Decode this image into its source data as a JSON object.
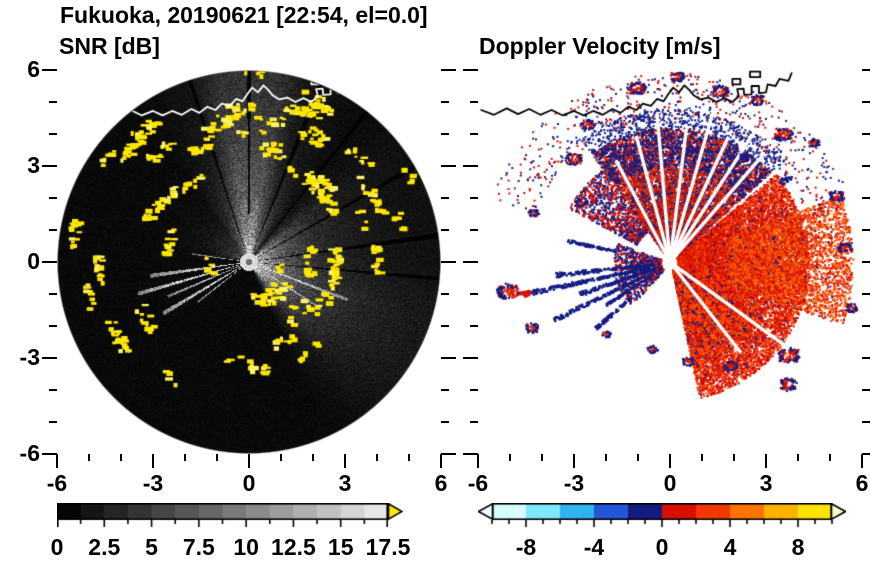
{
  "header": {
    "title": "Fukuoka, 20190621 [22:54, el=0.0]"
  },
  "panels": {
    "snr": {
      "title": "SNR [dB]"
    },
    "doppler": {
      "title": "Doppler Velocity [m/s]"
    }
  },
  "axes": {
    "range": [
      -6,
      6
    ],
    "minor_step": 1,
    "major_step": 3,
    "x_ticks": [
      {
        "v": -6,
        "label": "-6"
      },
      {
        "v": -3,
        "label": "-3"
      },
      {
        "v": 0,
        "label": "0"
      },
      {
        "v": 3,
        "label": "3"
      },
      {
        "v": 6,
        "label": "6"
      }
    ],
    "y_ticks": [
      {
        "v": 6,
        "label": "6"
      },
      {
        "v": 3,
        "label": "3"
      },
      {
        "v": 0,
        "label": "0"
      },
      {
        "v": -3,
        "label": "-3"
      },
      {
        "v": -6,
        "label": "-6"
      }
    ]
  },
  "colorbars": {
    "snr": {
      "min": 0,
      "max": 17.5,
      "step": 1.25,
      "over_color": "#ffe800",
      "labels": [
        {
          "v": 0,
          "label": "0"
        },
        {
          "v": 2.5,
          "label": "2.5"
        },
        {
          "v": 5,
          "label": "5"
        },
        {
          "v": 7.5,
          "label": "7.5"
        },
        {
          "v": 10,
          "label": "10"
        },
        {
          "v": 12.5,
          "label": "12.5"
        },
        {
          "v": 15,
          "label": "15"
        },
        {
          "v": 17.5,
          "label": "17.5"
        }
      ]
    },
    "doppler": {
      "min": -10,
      "max": 10,
      "segment_colors": [
        "#d8ffff",
        "#7fe8ff",
        "#2fb4f0",
        "#2356d8",
        "#141c80",
        "#d81000",
        "#f03800",
        "#ff7300",
        "#ffb300",
        "#ffe400"
      ],
      "under_color": "#eeffff",
      "over_color": "#ffffcf",
      "labels": [
        {
          "v": -8,
          "label": "-8"
        },
        {
          "v": -4,
          "label": "-4"
        },
        {
          "v": 0,
          "label": "0"
        },
        {
          "v": 4,
          "label": "4"
        },
        {
          "v": 8,
          "label": "8"
        }
      ]
    }
  },
  "chart_data": {
    "type": "heatmap",
    "subtype": "dual-panel doppler lidar/radar PPI scan",
    "station": "Fukuoka",
    "date": "20190621",
    "time": "22:54",
    "elevation_deg": 0.0,
    "x_range_km": [
      -6,
      6
    ],
    "y_range_km": [
      -6,
      6
    ],
    "panels": [
      {
        "name": "SNR",
        "units": "dB",
        "colormap": "grayscale",
        "cmin": 0,
        "cmax": 17.5,
        "over_color": "#ffe800"
      },
      {
        "name": "Doppler Velocity",
        "units": "m/s",
        "colormap": "cyan-blue-navy-red-orange-yellow",
        "cmin": -10,
        "cmax": 10
      }
    ],
    "snr": {
      "disk_radius_km": 6,
      "speckle_color": "#ffe800",
      "sectors": [
        {
          "a0": -58,
          "a1": 46,
          "amp": 190,
          "r1": 0.14,
          "amp2": 46,
          "r2": 0.5,
          "soft": 8
        },
        {
          "a0": -45,
          "a1": -8,
          "amp": 0,
          "r1": 0.3,
          "amp2": 24,
          "r2": 0.9,
          "soft": 10
        },
        {
          "a0": 58,
          "a1": 118,
          "amp": 120,
          "r1": 0.15,
          "amp2": 40,
          "r2": 0.6,
          "soft": 8
        },
        {
          "a0": 76,
          "a1": 104,
          "amp": 0,
          "r1": 0.2,
          "amp2": 70,
          "r2": 1.2,
          "soft": 5
        },
        {
          "a0": 116,
          "a1": 168,
          "amp": 90,
          "r1": 0.12,
          "amp2": 0,
          "r2": 1,
          "soft": 8
        }
      ],
      "bright_rays": [
        {
          "a": 188,
          "w": 1.2,
          "len": 0.52,
          "amp": 260
        },
        {
          "a": 196,
          "w": 1.0,
          "len": 0.6,
          "amp": 280
        },
        {
          "a": 203,
          "w": 0.9,
          "len": 0.46,
          "amp": 250
        },
        {
          "a": 211,
          "w": 1.2,
          "len": 0.52,
          "amp": 270
        },
        {
          "a": 218,
          "w": 0.8,
          "len": 0.34,
          "amp": 230
        },
        {
          "a": 172,
          "w": 0.8,
          "len": 0.3,
          "amp": 200
        },
        {
          "a": -21,
          "w": 0.9,
          "len": 0.55,
          "amp": 190
        },
        {
          "a": -33,
          "w": 0.7,
          "len": 0.42,
          "amp": 170
        }
      ],
      "dark_rays": [
        {
          "a": 8,
          "w": 0.8,
          "len": 1
        },
        {
          "a": -5,
          "w": 0.6,
          "len": 1
        },
        {
          "a": 30,
          "w": 0.7,
          "len": 1
        },
        {
          "a": 52,
          "w": 0.6,
          "len": 1
        },
        {
          "a": 68,
          "w": 0.8,
          "len": 1
        },
        {
          "a": 90,
          "w": 0.6,
          "len": 1
        },
        {
          "a": 108,
          "w": 0.6,
          "len": 1
        }
      ],
      "speckle_zones": [
        {
          "a0": 96,
          "a1": 152,
          "r0": 0.5,
          "r1": 0.95,
          "n": 13
        },
        {
          "a0": 62,
          "a1": 96,
          "r0": 0.55,
          "r1": 1.0,
          "n": 11
        },
        {
          "a0": 28,
          "a1": 62,
          "r0": 0.45,
          "r1": 0.95,
          "n": 9
        },
        {
          "a0": -8,
          "a1": 28,
          "r0": 0.3,
          "r1": 0.8,
          "n": 7
        },
        {
          "a0": -72,
          "a1": -18,
          "r0": 0.12,
          "r1": 0.55,
          "n": 10
        },
        {
          "a0": 152,
          "a1": 214,
          "r0": 0.55,
          "r1": 0.95,
          "n": 6
        },
        {
          "a0": -130,
          "a1": -80,
          "r0": 0.3,
          "r1": 0.8,
          "n": 3
        },
        {
          "a0": 160,
          "a1": 200,
          "r0": 0.2,
          "r1": 0.45,
          "n": 2
        }
      ]
    },
    "doppler": {
      "navy": "#141c80",
      "regions": [
        {
          "a0": -78,
          "a1": 40,
          "r0": 0.04,
          "rmax": 0.72,
          "n": 15000,
          "colors": [
            "#d81000",
            "#ee2800",
            "#c00800",
            "#ff4d00"
          ],
          "navy": 0.04,
          "size": 2
        },
        {
          "a0": -20,
          "a1": 22,
          "r0": 0.3,
          "rmax": 0.95,
          "n": 3500,
          "colors": [
            "#ee3a00",
            "#ff6a00",
            "#d81000"
          ],
          "navy": 0.03,
          "size": 2
        },
        {
          "a0": -78,
          "a1": -30,
          "r0": 0.1,
          "rmax": 0.55,
          "n": 2200,
          "colors": [
            "#d81000",
            "#ff5500"
          ],
          "navy": 0.15,
          "size": 2
        },
        {
          "a0": 42,
          "a1": 126,
          "r0": 0.06,
          "rmax": 0.7,
          "n": 9000,
          "colors": [
            "#d81000",
            "#e03000"
          ],
          "navy": 0.28,
          "size": 2
        },
        {
          "a0": 42,
          "a1": 126,
          "r0": 0.5,
          "rmax": 0.8,
          "n": 1600,
          "colors": [
            "#141c80"
          ],
          "navy": 1,
          "size": 2
        },
        {
          "a0": 126,
          "a1": 152,
          "r0": 0.2,
          "rmax": 0.6,
          "n": 900,
          "colors": [
            "#d81000"
          ],
          "navy": 0.5,
          "size": 2
        },
        {
          "a0": 20,
          "a1": 160,
          "r0": 0.75,
          "rmax": 0.99,
          "n": 500,
          "colors": [
            "#d81000"
          ],
          "navy": 0.5,
          "size": 2
        },
        {
          "a0": 160,
          "a1": 228,
          "r0": 0.05,
          "rmax": 0.3,
          "n": 800,
          "colors": [
            "#d81000"
          ],
          "navy": 0.65,
          "size": 2
        }
      ],
      "streaks": [
        {
          "a": 186,
          "w": 1.2,
          "r0": 0.1,
          "r1": 0.6
        },
        {
          "a": 192,
          "w": 1.0,
          "r0": 0.12,
          "r1": 0.82,
          "redTip": true
        },
        {
          "a": 199,
          "w": 1.4,
          "r0": 0.1,
          "r1": 0.5
        },
        {
          "a": 206,
          "w": 1.0,
          "r0": 0.15,
          "r1": 0.68
        },
        {
          "a": 213,
          "w": 0.9,
          "r0": 0.12,
          "r1": 0.4
        },
        {
          "a": 221,
          "w": 1.1,
          "r0": 0.28,
          "r1": 0.52
        },
        {
          "a": 168,
          "w": 0.9,
          "r0": 0.3,
          "r1": 0.55
        }
      ],
      "gap_rays": [
        {
          "a": 49,
          "r1": 0.75
        },
        {
          "a": 57,
          "r1": 0.8
        },
        {
          "a": 65,
          "r1": 0.72
        },
        {
          "a": 74,
          "r1": 0.82
        },
        {
          "a": 83,
          "r1": 0.7
        },
        {
          "a": 95,
          "r1": 0.78
        },
        {
          "a": 105,
          "r1": 0.68
        },
        {
          "a": 118,
          "r1": 0.6
        },
        {
          "a": -36,
          "r1": 0.75
        },
        {
          "a": -52,
          "r1": 0.6
        }
      ],
      "patches": [
        {
          "a": 133,
          "r": 0.74,
          "s": 10
        },
        {
          "a": 121,
          "r": 0.84,
          "s": 8
        },
        {
          "a": 101,
          "r": 0.93,
          "s": 11
        },
        {
          "a": 88,
          "r": 0.97,
          "s": 8
        },
        {
          "a": 74,
          "r": 0.93,
          "s": 10
        },
        {
          "a": 62,
          "r": 0.96,
          "s": 8
        },
        {
          "a": 49,
          "r": 0.89,
          "s": 11
        },
        {
          "a": 40,
          "r": 0.97,
          "s": 7
        },
        {
          "a": 22,
          "r": 0.93,
          "s": 9
        },
        {
          "a": 5,
          "r": 0.91,
          "s": 8
        },
        {
          "a": -14,
          "r": 0.97,
          "s": 7
        },
        {
          "a": -38,
          "r": 0.78,
          "s": 13
        },
        {
          "a": -46,
          "r": 0.88,
          "s": 10
        },
        {
          "a": -60,
          "r": 0.62,
          "s": 8
        },
        {
          "a": -80,
          "r": 0.52,
          "s": 7
        },
        {
          "a": -102,
          "r": 0.46,
          "s": 6
        },
        {
          "a": 190,
          "r": 0.86,
          "s": 13
        },
        {
          "a": 205,
          "r": 0.8,
          "s": 8
        },
        {
          "a": 160,
          "r": 0.76,
          "s": 6
        },
        {
          "a": 146,
          "r": 0.56,
          "s": 7
        },
        {
          "a": 228,
          "r": 0.5,
          "s": 5
        },
        {
          "a": 36,
          "r": 0.74,
          "s": 9,
          "solid": 1
        },
        {
          "a": 55,
          "r": 0.68,
          "s": 8,
          "solid": 1
        }
      ]
    },
    "coastline_km": [
      [
        -5.9,
        4.75
      ],
      [
        -5.5,
        4.6
      ],
      [
        -5.1,
        4.8
      ],
      [
        -4.75,
        4.62
      ],
      [
        -4.4,
        4.78
      ],
      [
        -4.05,
        4.6
      ],
      [
        -3.7,
        4.75
      ],
      [
        -3.35,
        4.58
      ],
      [
        -3.0,
        4.72
      ],
      [
        -2.7,
        4.58
      ],
      [
        -2.4,
        4.72
      ],
      [
        -2.1,
        4.6
      ],
      [
        -1.8,
        4.78
      ],
      [
        -1.55,
        4.66
      ],
      [
        -1.3,
        4.85
      ],
      [
        -1.05,
        4.75
      ],
      [
        -0.85,
        4.95
      ],
      [
        -0.6,
        4.88
      ],
      [
        -0.4,
        5.1
      ],
      [
        -0.2,
        5.02
      ],
      [
        -0.05,
        5.25
      ],
      [
        0.1,
        5.45
      ],
      [
        0.28,
        5.3
      ],
      [
        0.45,
        5.52
      ],
      [
        0.6,
        5.38
      ],
      [
        0.75,
        5.2
      ],
      [
        0.95,
        5.08
      ],
      [
        1.2,
        5.14
      ],
      [
        1.45,
        5.0
      ],
      [
        1.7,
        5.12
      ],
      [
        1.95,
        5.0
      ],
      [
        2.15,
        5.18
      ],
      [
        2.1,
        5.4
      ],
      [
        2.3,
        5.42
      ],
      [
        2.32,
        5.22
      ],
      [
        2.55,
        5.24
      ],
      [
        2.55,
        5.5
      ],
      [
        2.78,
        5.5
      ],
      [
        2.78,
        5.28
      ],
      [
        3.0,
        5.3
      ],
      [
        3.05,
        5.55
      ],
      [
        3.3,
        5.5
      ],
      [
        3.42,
        5.72
      ],
      [
        3.7,
        5.66
      ],
      [
        3.8,
        5.9
      ]
    ],
    "islands_km": [
      [
        [
          1.95,
          5.55
        ],
        [
          2.2,
          5.55
        ],
        [
          2.2,
          5.72
        ],
        [
          1.95,
          5.72
        ]
      ],
      [
        [
          2.5,
          5.78
        ],
        [
          2.82,
          5.78
        ],
        [
          2.82,
          5.95
        ],
        [
          2.5,
          5.95
        ]
      ]
    ]
  }
}
